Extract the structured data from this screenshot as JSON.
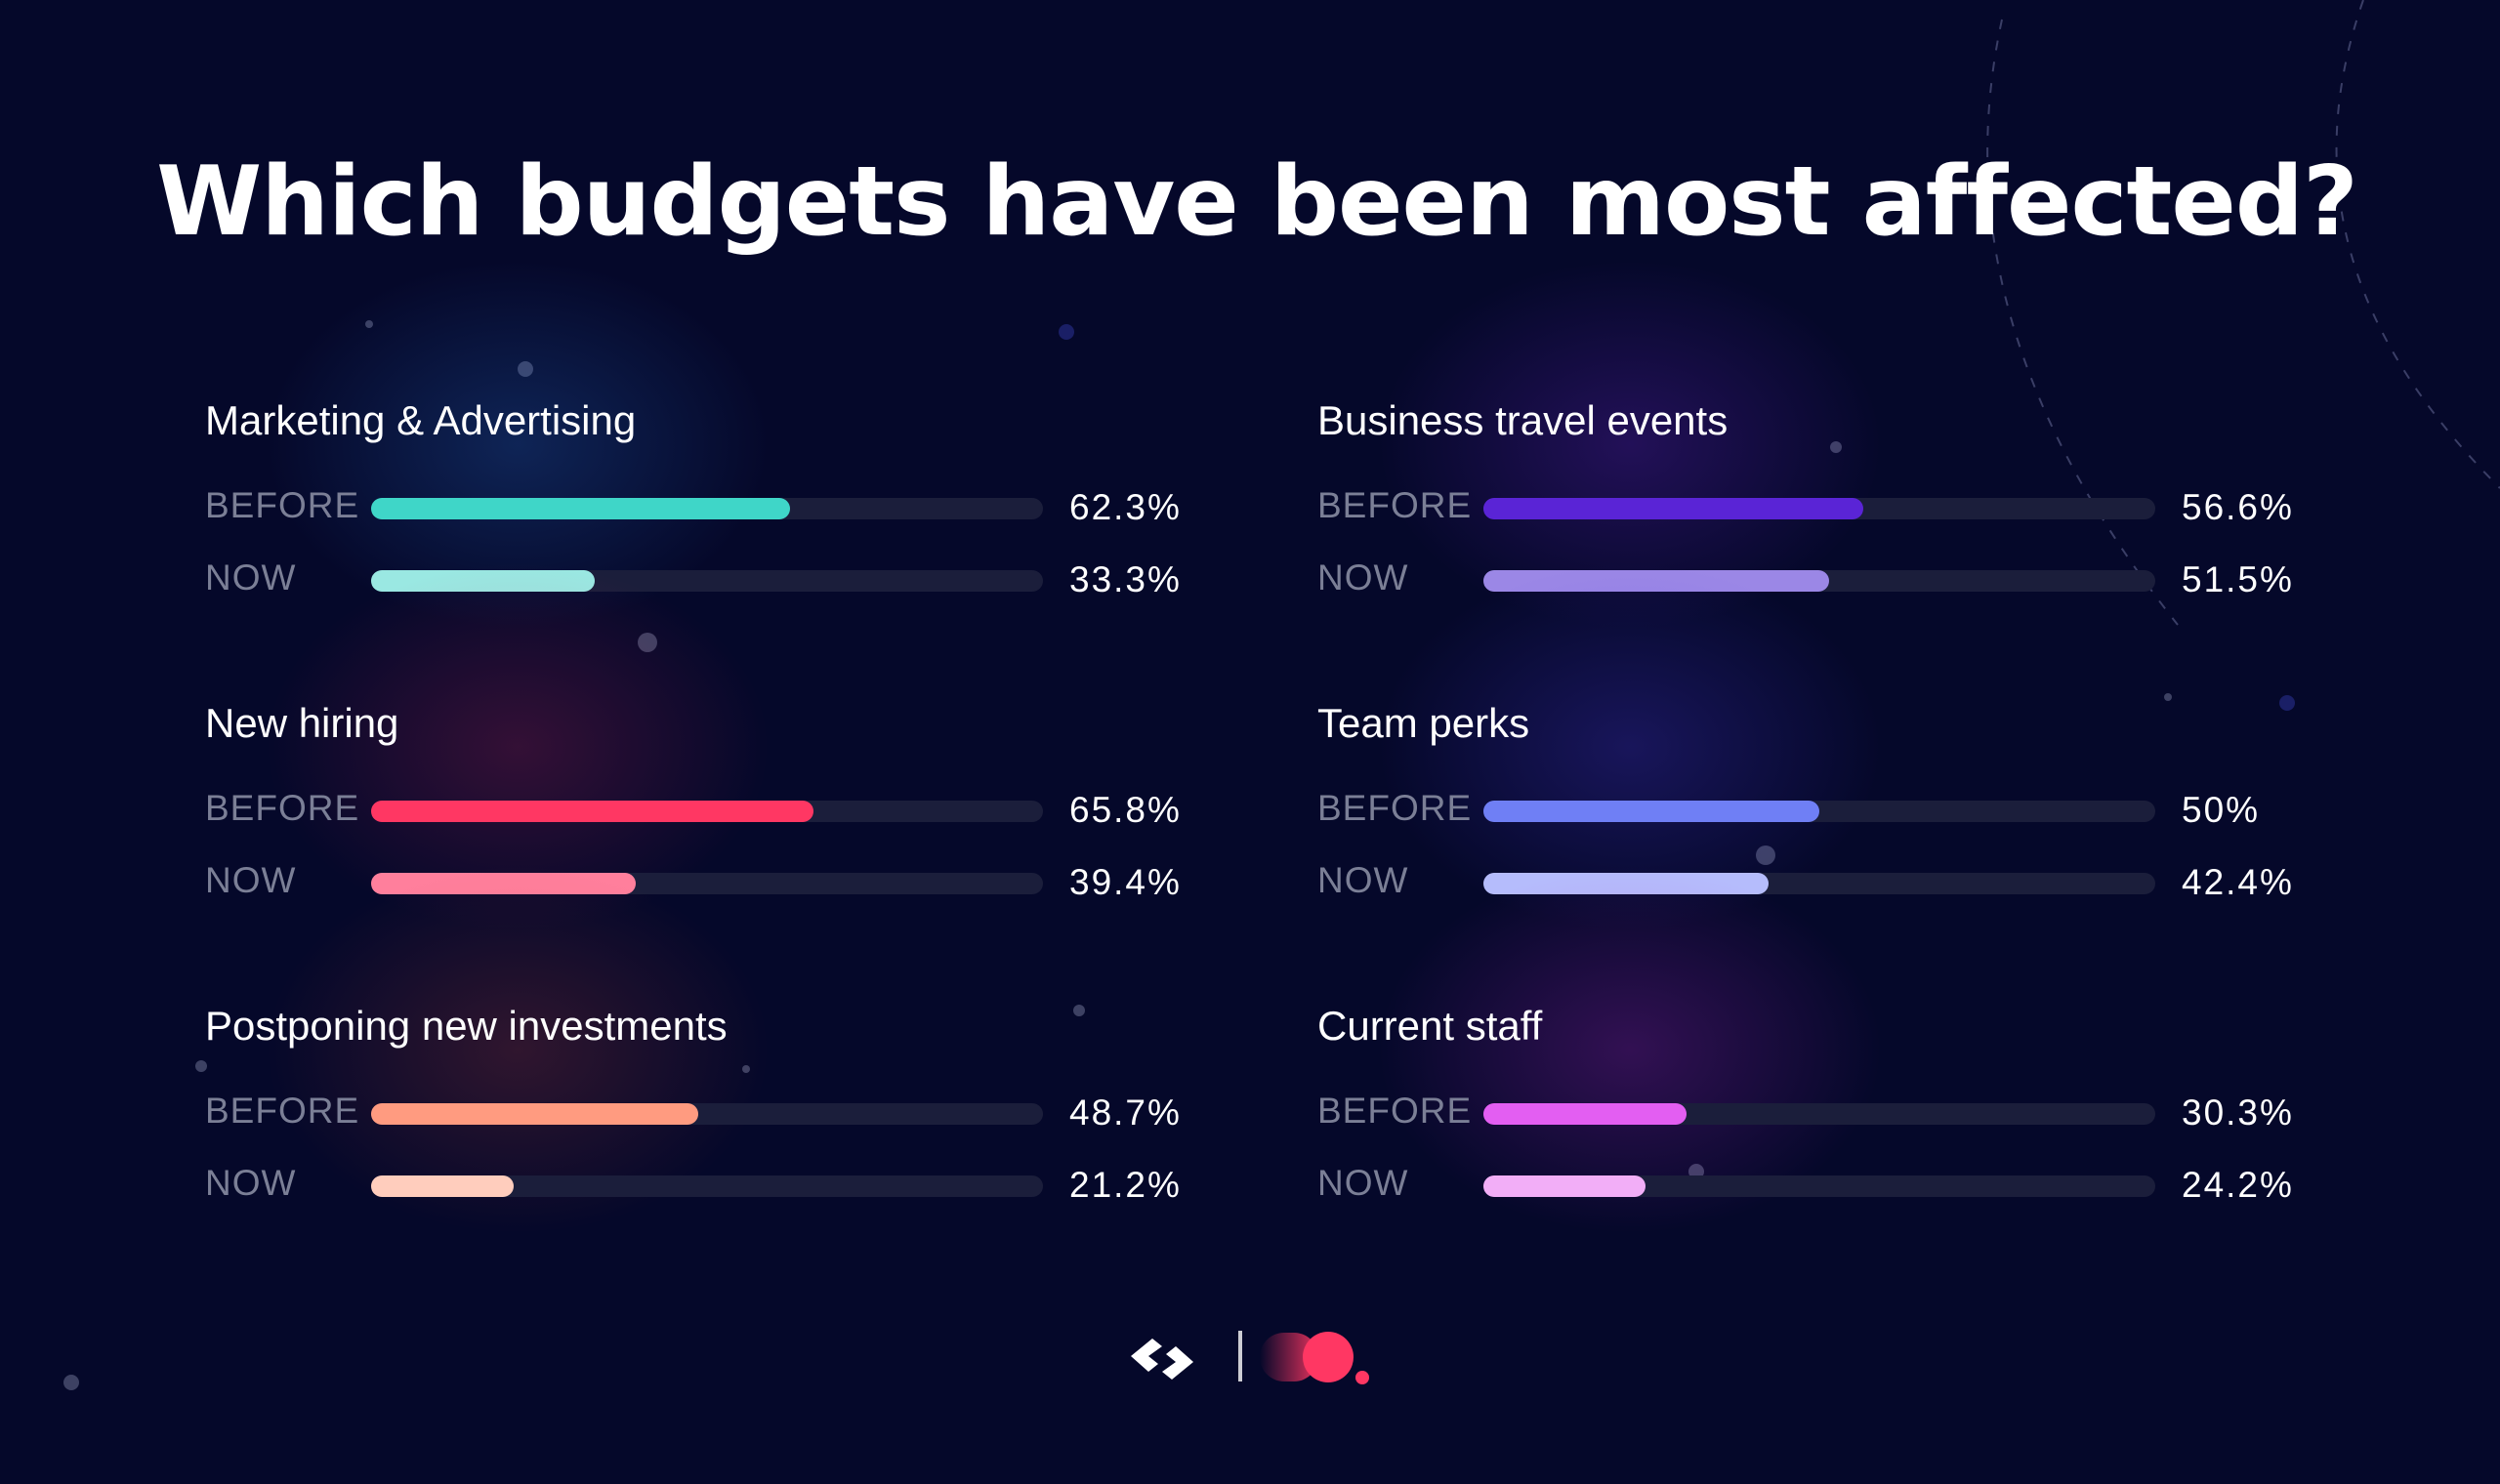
{
  "title": "Which budgets have been most affected?",
  "chart_data": {
    "type": "bar",
    "title": "Which budgets have been most affected?",
    "unit": "%",
    "max": 100,
    "series_labels": [
      "BEFORE",
      "NOW"
    ],
    "categories": [
      {
        "name": "Marketing & Advertising",
        "before": 62.3,
        "now": 33.3,
        "before_label": "62.3%",
        "now_label": "33.3%",
        "before_color": "#3fd6c8",
        "now_color": "#9ae8e2",
        "glow_color": "rgba(40,110,200,0.28)"
      },
      {
        "name": "Business travel events",
        "before": 56.6,
        "now": 51.5,
        "before_label": "56.6%",
        "now_label": "51.5%",
        "before_color": "#5a24d6",
        "now_color": "#9b87e6",
        "glow_color": "rgba(120,40,220,0.26)"
      },
      {
        "name": "New hiring",
        "before": 65.8,
        "now": 39.4,
        "before_label": "65.8%",
        "now_label": "39.4%",
        "before_color": "#ff3763",
        "now_color": "#ff7f9c",
        "glow_color": "rgba(200,40,90,0.24)"
      },
      {
        "name": "Team perks",
        "before": 50,
        "now": 42.4,
        "before_label": "50%",
        "now_label": "42.4%",
        "before_color": "#6f7ff5",
        "now_color": "#b5bcfc",
        "glow_color": "rgba(80,60,230,0.26)"
      },
      {
        "name": "Postponing new investments",
        "before": 48.7,
        "now": 21.2,
        "before_label": "48.7%",
        "now_label": "21.2%",
        "before_color": "#ff9b80",
        "now_color": "#ffcdbd",
        "glow_color": "rgba(200,70,60,0.22)"
      },
      {
        "name": "Current staff",
        "before": 30.3,
        "now": 24.2,
        "before_label": "30.3%",
        "now_label": "24.2%",
        "before_color": "#e35ef2",
        "now_color": "#f2aef7",
        "glow_color": "rgba(180,40,200,0.26)"
      }
    ]
  },
  "colors": {
    "background": "#05082a",
    "track": "#1b1e3b",
    "label": "#7b7f96",
    "text": "#ffffff",
    "brand_accent": "#ff3763"
  },
  "footer": {
    "logo_left_icon": "chevron-s-logo-icon",
    "logo_right_icon": "red-dot-logo-icon"
  }
}
